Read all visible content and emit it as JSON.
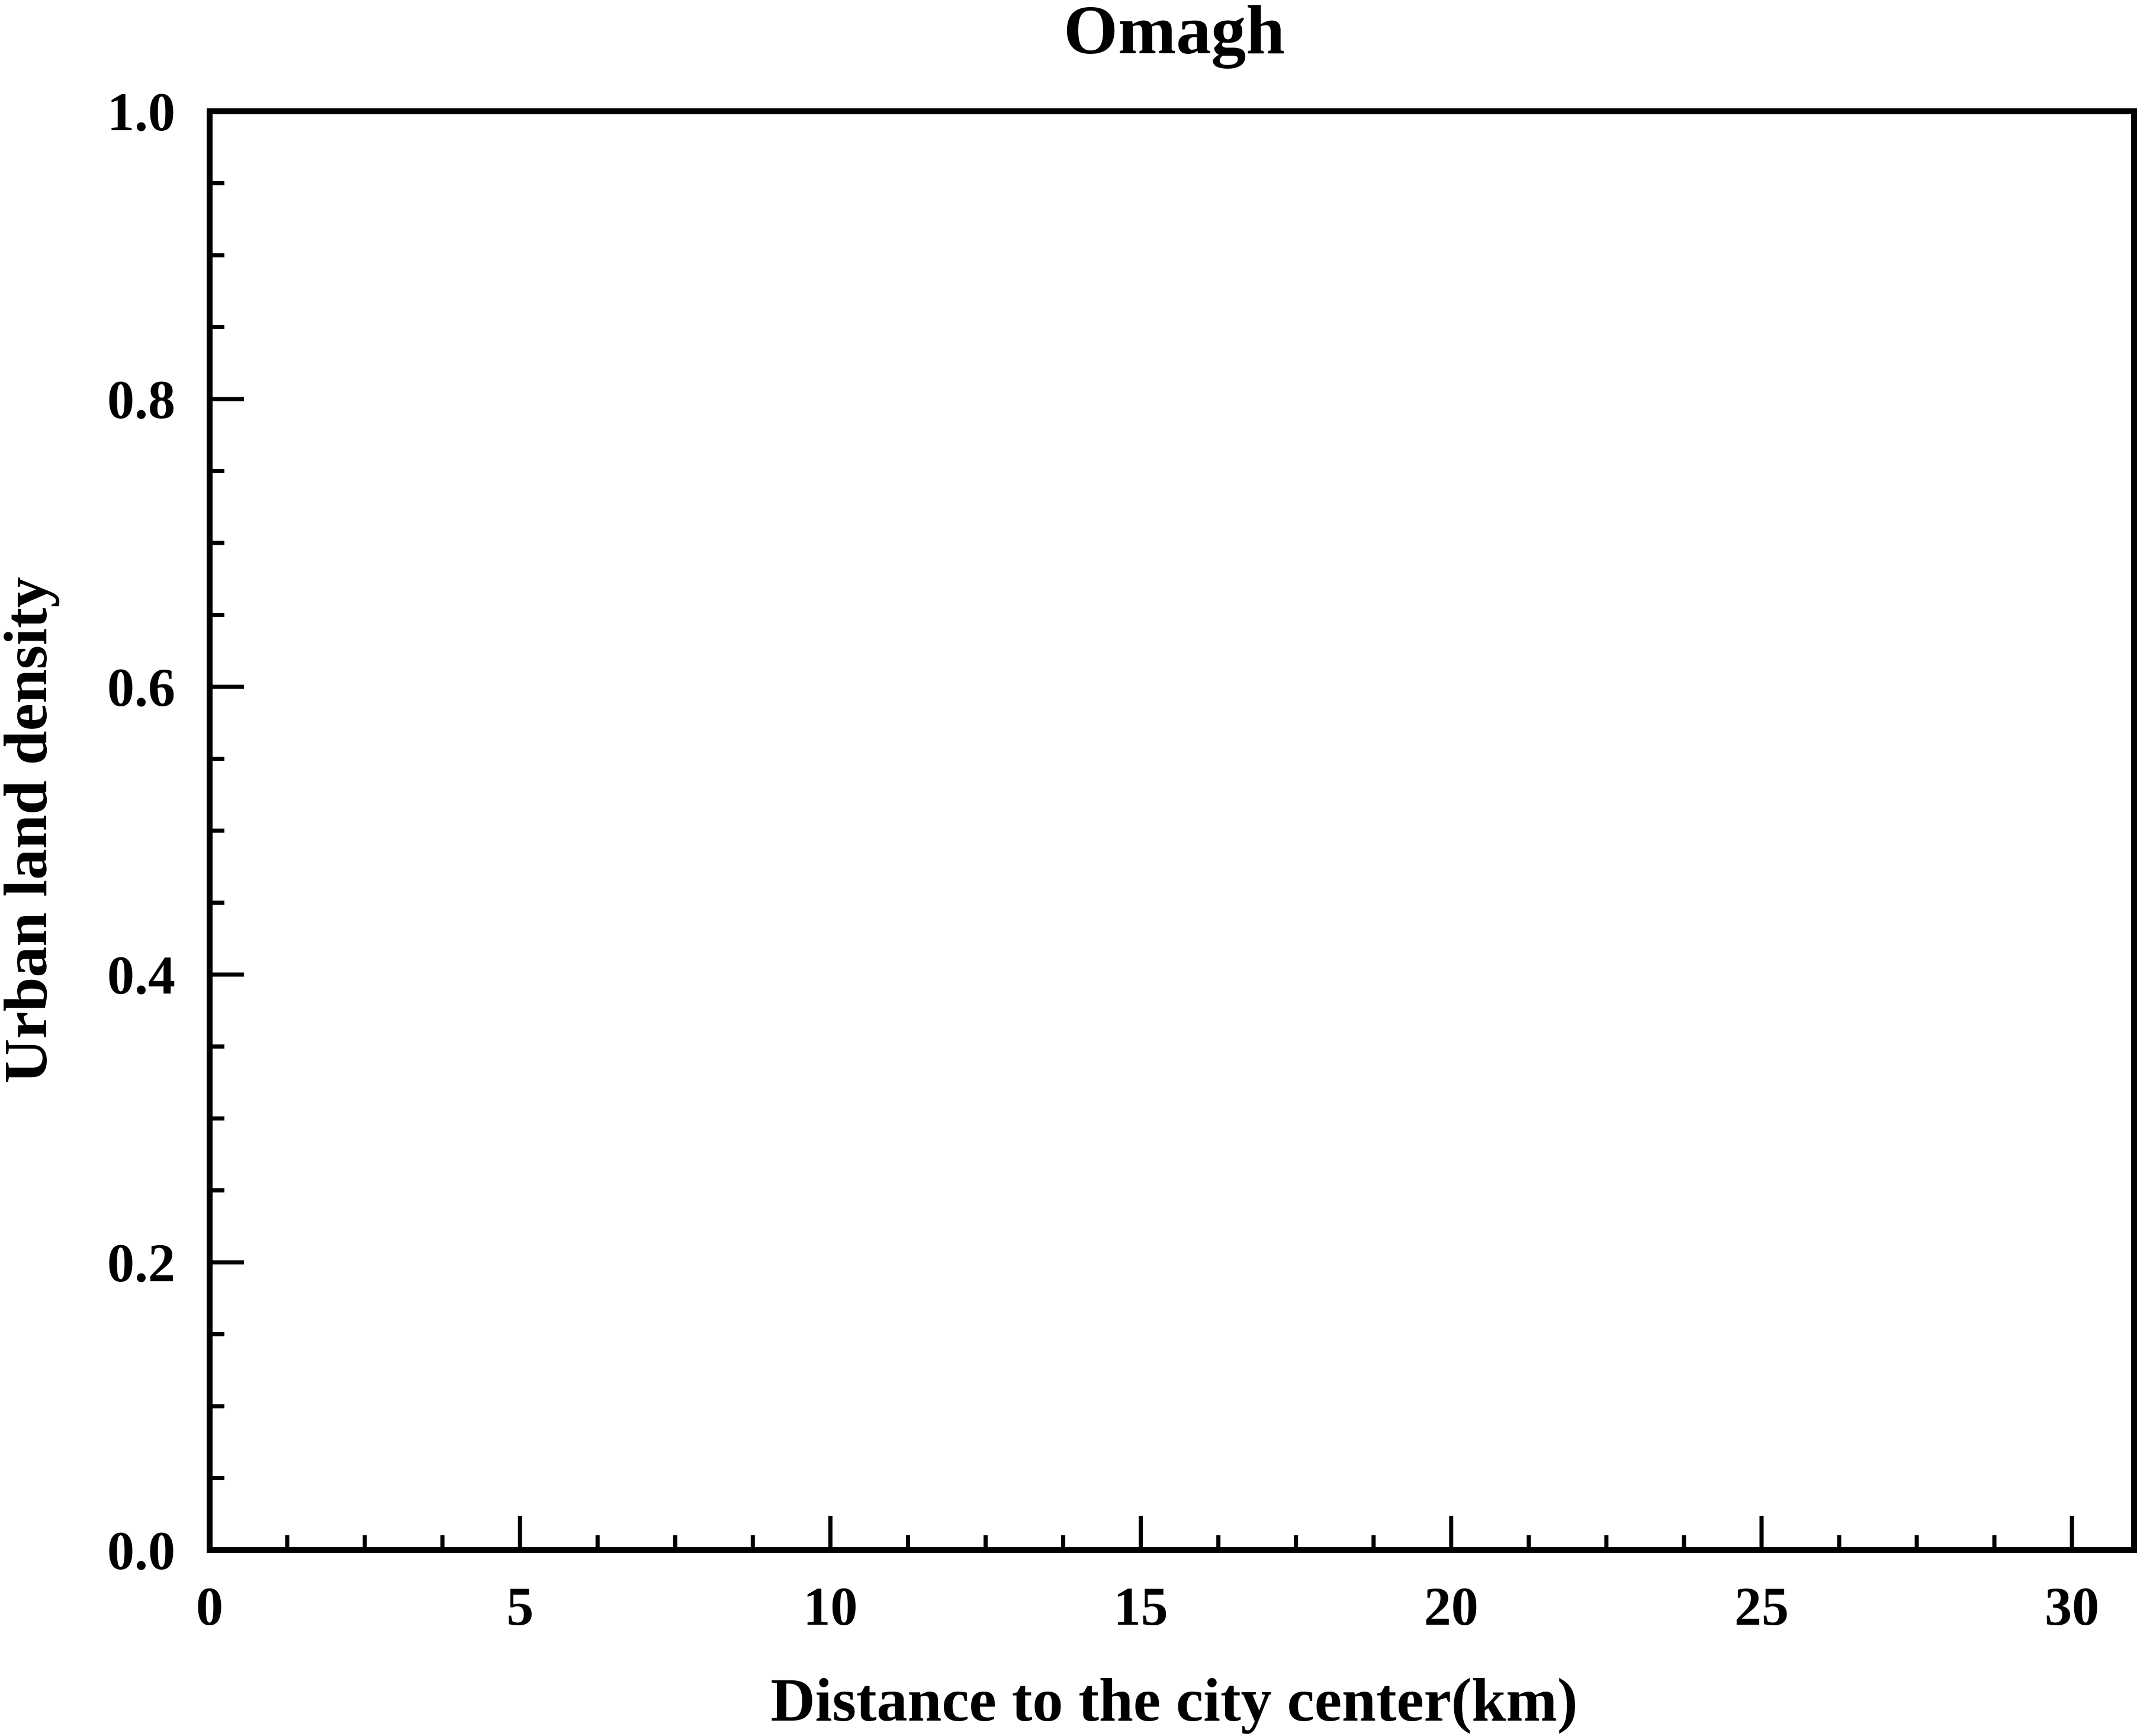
{
  "chart_data": {
    "type": "line",
    "title": "Omagh",
    "xlabel": "Distance to the city center(km)",
    "ylabel": "Urban land density",
    "xlim": [
      0,
      31
    ],
    "ylim": [
      0.0,
      1.0
    ],
    "x_ticks": [
      0,
      5,
      10,
      15,
      20,
      25,
      30
    ],
    "x_tick_labels": [
      "0",
      "5",
      "10",
      "15",
      "20",
      "25",
      "30"
    ],
    "x_minor_step": 1.25,
    "y_ticks": [
      0.0,
      0.2,
      0.4,
      0.6,
      0.8,
      1.0
    ],
    "y_tick_labels": [
      "0.0",
      "0.2",
      "0.4",
      "0.6",
      "0.8",
      "1.0"
    ],
    "y_minor_step": 0.05,
    "grid": false,
    "series": []
  },
  "colors": {
    "axis": "#000000",
    "background": "#ffffff"
  }
}
